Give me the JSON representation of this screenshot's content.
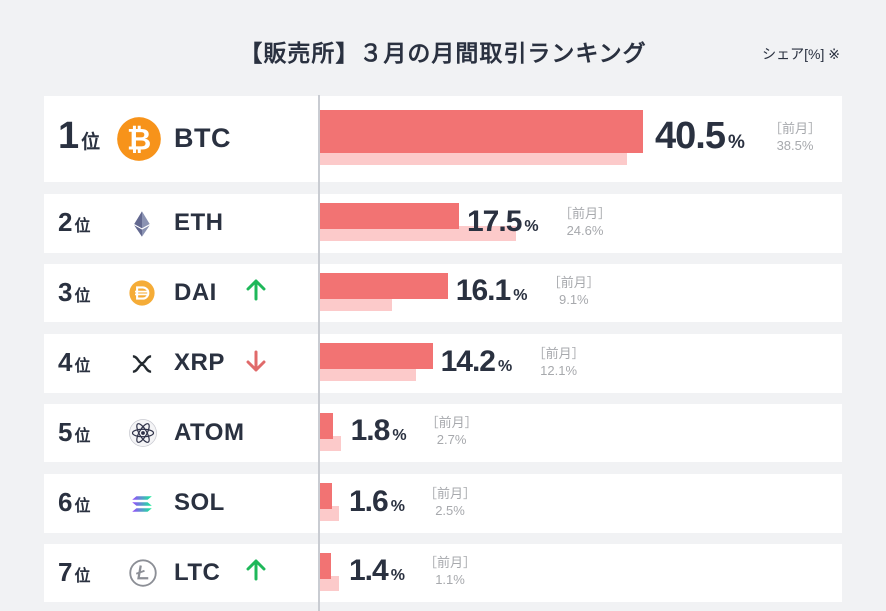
{
  "title": "【販売所】３月の月間取引ランキング",
  "unit_label": "シェア[%] ※",
  "rank_suffix": "位",
  "percent_sign": "%",
  "prev_label": "［前月］",
  "colors": {
    "current": "#f27373",
    "previous": "#fccaca",
    "up": "#1fb85a",
    "down": "#e06a6a"
  },
  "chart_data": {
    "type": "bar",
    "title": "【販売所】３月の月間取引ランキング",
    "categories": [
      "BTC",
      "ETH",
      "DAI",
      "XRP",
      "ATOM",
      "SOL",
      "LTC"
    ],
    "series": [
      {
        "name": "",
        "values": [
          40.5,
          17.5,
          16.1,
          14.2,
          1.8,
          1.6,
          1.4
        ]
      },
      {
        "name": "前月",
        "values": [
          38.5,
          24.6,
          9.1,
          12.1,
          2.7,
          2.5,
          1.1
        ]
      }
    ],
    "orientation": "horizontal",
    "grid": false,
    "legend": "none"
  },
  "rows": [
    {
      "rank": "1",
      "coin": "BTC",
      "icon": "bitcoin-icon",
      "value": "40.5",
      "prev": "38.5%",
      "trend": ""
    },
    {
      "rank": "2",
      "coin": "ETH",
      "icon": "ethereum-icon",
      "value": "17.5",
      "prev": "24.6%",
      "trend": ""
    },
    {
      "rank": "3",
      "coin": "DAI",
      "icon": "dai-icon",
      "value": "16.1",
      "prev": "9.1%",
      "trend": "up"
    },
    {
      "rank": "4",
      "coin": "XRP",
      "icon": "xrp-icon",
      "value": "14.2",
      "prev": "12.1%",
      "trend": "down"
    },
    {
      "rank": "5",
      "coin": "ATOM",
      "icon": "cosmos-icon",
      "value": "1.8",
      "prev": "2.7%",
      "trend": ""
    },
    {
      "rank": "6",
      "coin": "SOL",
      "icon": "solana-icon",
      "value": "1.6",
      "prev": "2.5%",
      "trend": ""
    },
    {
      "rank": "7",
      "coin": "LTC",
      "icon": "litecoin-icon",
      "value": "1.4",
      "prev": "1.1%",
      "trend": "up"
    }
  ]
}
